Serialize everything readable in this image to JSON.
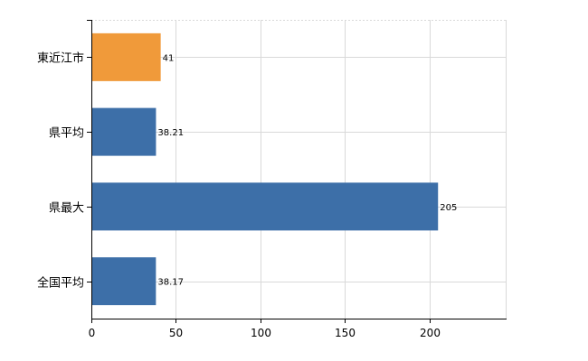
{
  "chart_data": {
    "type": "bar",
    "orientation": "horizontal",
    "categories": [
      "東近江市",
      "県平均",
      "県最大",
      "全国平均"
    ],
    "values": [
      41,
      38.21,
      205,
      38.17
    ],
    "value_labels": [
      "41",
      "38.21",
      "205",
      "38.17"
    ],
    "highlight_index": 0,
    "colors": {
      "default": "#3d6fa8",
      "highlight": "#f09a3a"
    },
    "xlim": [
      0,
      245
    ],
    "x_ticks": [
      0,
      50,
      100,
      150,
      200
    ],
    "x_tick_labels": [
      "0",
      "50",
      "100",
      "150",
      "200"
    ],
    "grid": true,
    "title": "",
    "xlabel": "",
    "ylabel": ""
  }
}
